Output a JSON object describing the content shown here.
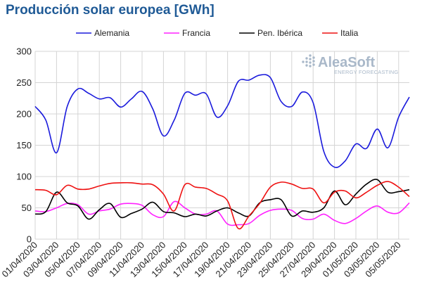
{
  "chart_data": {
    "type": "line",
    "title": "Producción solar europea [GWh]",
    "xlabel": "",
    "ylabel": "",
    "ylim": [
      0,
      300
    ],
    "yticks": [
      0,
      50,
      100,
      150,
      200,
      250,
      300
    ],
    "grid": true,
    "legend_position": "top",
    "x": [
      "01/04/2020",
      "02/04/2020",
      "03/04/2020",
      "04/04/2020",
      "05/04/2020",
      "06/04/2020",
      "07/04/2020",
      "08/04/2020",
      "09/04/2020",
      "10/04/2020",
      "11/04/2020",
      "12/04/2020",
      "13/04/2020",
      "14/04/2020",
      "15/04/2020",
      "16/04/2020",
      "17/04/2020",
      "18/04/2020",
      "19/04/2020",
      "20/04/2020",
      "21/04/2020",
      "22/04/2020",
      "23/04/2020",
      "24/04/2020",
      "25/04/2020",
      "26/04/2020",
      "27/04/2020",
      "28/04/2020",
      "29/04/2020",
      "30/04/2020",
      "01/05/2020",
      "02/05/2020",
      "03/05/2020",
      "04/05/2020",
      "05/05/2020",
      "06/05/2020"
    ],
    "xtick_labels": [
      "01/04/2020",
      "03/04/2020",
      "05/04/2020",
      "07/04/2020",
      "09/04/2020",
      "11/04/2020",
      "13/04/2020",
      "15/04/2020",
      "17/04/2020",
      "19/04/2020",
      "21/04/2020",
      "23/04/2020",
      "25/04/2020",
      "27/04/2020",
      "29/04/2020",
      "01/05/2020",
      "03/05/2020",
      "05/05/2020"
    ],
    "series": [
      {
        "name": "Alemania",
        "color": "#1a1adc",
        "values": [
          212,
          190,
          138,
          212,
          240,
          233,
          224,
          226,
          211,
          224,
          236,
          208,
          165,
          190,
          233,
          230,
          232,
          195,
          213,
          252,
          254,
          262,
          258,
          220,
          212,
          235,
          218,
          140,
          115,
          125,
          152,
          145,
          176,
          146,
          195,
          227
        ]
      },
      {
        "name": "Francia",
        "color": "#ff22ff",
        "values": [
          45,
          44,
          50,
          57,
          55,
          40,
          45,
          48,
          56,
          57,
          54,
          39,
          36,
          60,
          50,
          40,
          40,
          45,
          24,
          23,
          25,
          38,
          46,
          48,
          46,
          33,
          32,
          40,
          30,
          25,
          33,
          45,
          53,
          43,
          42,
          58
        ]
      },
      {
        "name": "Pen. Ibérica",
        "color": "#000000",
        "values": [
          40,
          44,
          75,
          58,
          53,
          32,
          47,
          57,
          35,
          41,
          48,
          59,
          44,
          42,
          36,
          40,
          37,
          45,
          50,
          42,
          37,
          58,
          63,
          63,
          37,
          45,
          43,
          50,
          77,
          55,
          72,
          88,
          95,
          75,
          76,
          79
        ]
      },
      {
        "name": "Italia",
        "color": "#ee1111",
        "values": [
          79,
          78,
          71,
          86,
          80,
          80,
          85,
          89,
          90,
          90,
          88,
          87,
          72,
          45,
          87,
          83,
          81,
          72,
          61,
          17,
          37,
          57,
          83,
          91,
          88,
          81,
          80,
          58,
          75,
          77,
          66,
          75,
          86,
          92,
          83,
          68
        ]
      }
    ]
  },
  "logo": {
    "name": "AleaSoft",
    "tagline": "ENERGY FORECASTING"
  }
}
